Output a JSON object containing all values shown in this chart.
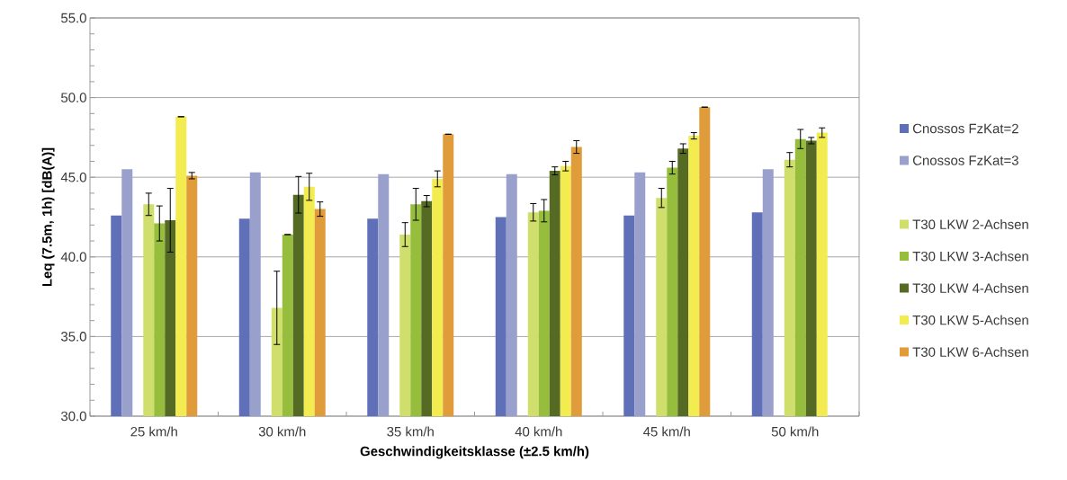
{
  "chart_data": {
    "type": "bar",
    "xlabel": "Geschwindigkeitsklasse (±2.5 km/h)",
    "ylabel": "Leq (7.5m, 1h) [dB(A)]",
    "categories": [
      "25 km/h",
      "30 km/h",
      "35 km/h",
      "40 km/h",
      "45 km/h",
      "50 km/h"
    ],
    "ylim": [
      30,
      55
    ],
    "yticks": [
      {
        "value": 30,
        "label": "30.0"
      },
      {
        "value": 35,
        "label": "35.0"
      },
      {
        "value": 40,
        "label": "40.0"
      },
      {
        "value": 45,
        "label": "45.0"
      },
      {
        "value": 50,
        "label": "50.0"
      },
      {
        "value": 55,
        "label": "55.0"
      }
    ],
    "grid": "y",
    "legend": "right",
    "series": [
      {
        "name": "Cnossos FzKat=2",
        "color": "#6070b8",
        "values": [
          42.6,
          42.4,
          42.4,
          42.5,
          42.6,
          42.8
        ]
      },
      {
        "name": "Cnossos FzKat=3",
        "color": "#9aa0cc",
        "values": [
          45.5,
          45.3,
          45.2,
          45.2,
          45.3,
          45.5
        ]
      },
      {
        "name": "T30 LKW 2-Achsen",
        "color": "#d0de6c",
        "values": [
          43.3,
          36.8,
          41.4,
          42.8,
          43.7,
          46.1
        ],
        "errors": [
          0.7,
          2.3,
          0.75,
          0.55,
          0.6,
          0.45
        ]
      },
      {
        "name": "T30 LKW 3-Achsen",
        "color": "#96be3c",
        "values": [
          42.1,
          41.4,
          43.3,
          42.9,
          45.6,
          47.4
        ],
        "errors": [
          1.1,
          0,
          1.0,
          0.7,
          0.4,
          0.6
        ]
      },
      {
        "name": "T30 LKW 4-Achsen",
        "color": "#556b24",
        "values": [
          42.3,
          43.9,
          43.5,
          45.4,
          46.8,
          47.3
        ],
        "errors": [
          2.0,
          1.15,
          0.35,
          0.25,
          0.3,
          0.2
        ]
      },
      {
        "name": "T30 LKW 5-Achsen",
        "color": "#f2ec50",
        "values": [
          48.8,
          44.4,
          44.9,
          45.7,
          47.6,
          47.8
        ],
        "errors": [
          0,
          0.85,
          0.5,
          0.3,
          0.2,
          0.3
        ]
      },
      {
        "name": "T30 LKW 6-Achsen",
        "color": "#e09c3a",
        "values": [
          45.1,
          43.0,
          47.7,
          46.9,
          49.4,
          null
        ],
        "errors": [
          0.2,
          0.45,
          0,
          0.4,
          0,
          null
        ]
      }
    ]
  }
}
